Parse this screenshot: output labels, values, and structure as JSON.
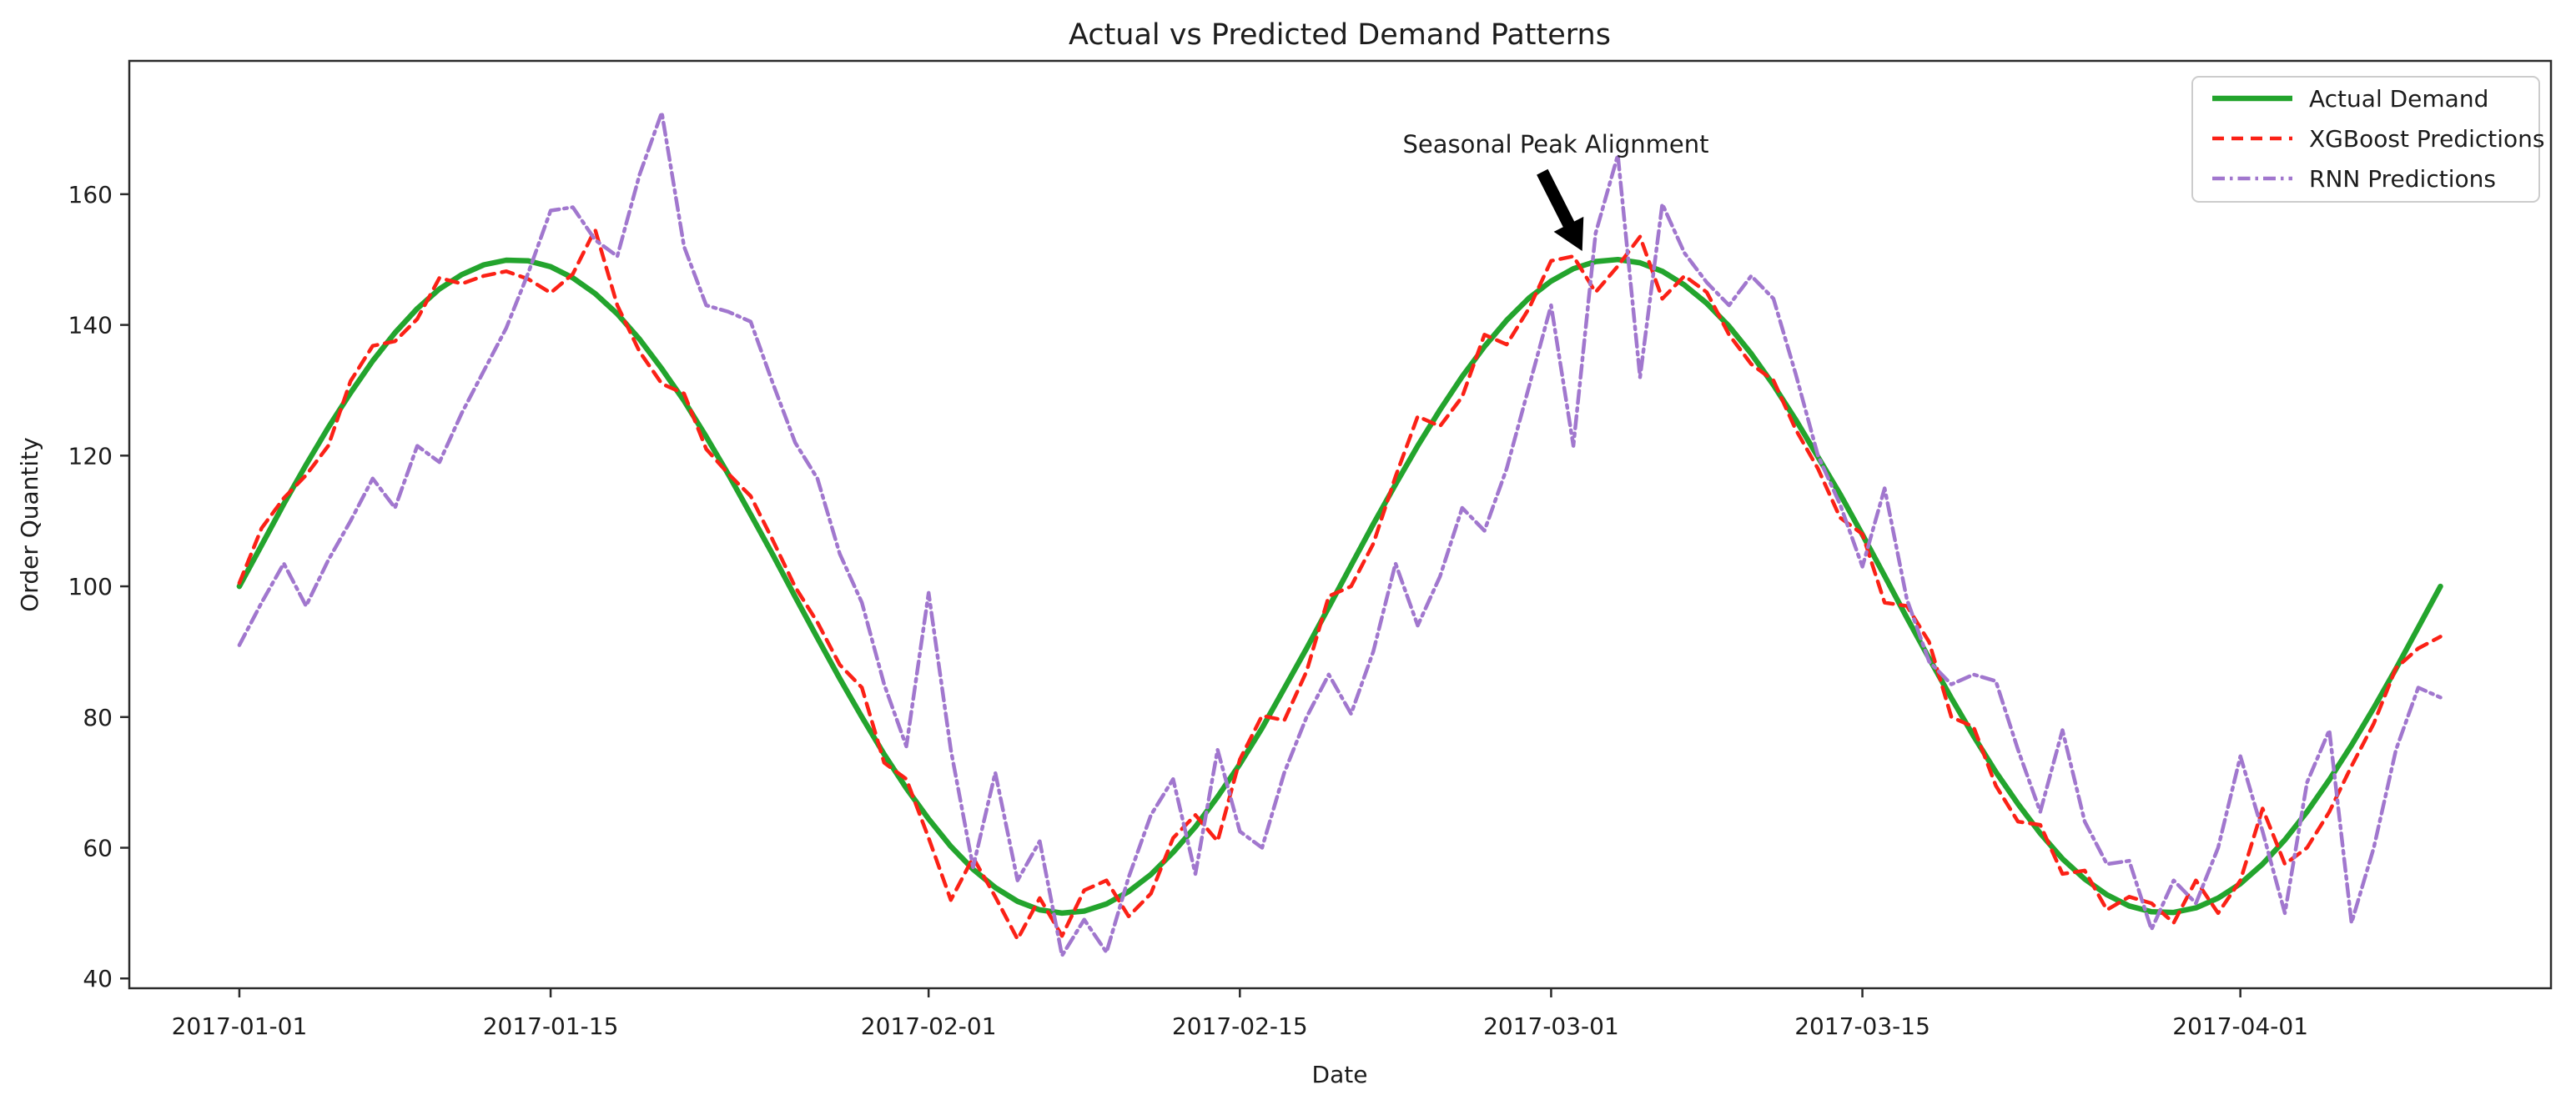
{
  "title": "Actual vs Predicted Demand Patterns",
  "axes": {
    "xlabel": "Date",
    "ylabel": "Order Quantity",
    "x_ticks": [
      {
        "label": "2017-01-01",
        "day": 0
      },
      {
        "label": "2017-01-15",
        "day": 14
      },
      {
        "label": "2017-02-01",
        "day": 31
      },
      {
        "label": "2017-02-15",
        "day": 45
      },
      {
        "label": "2017-03-01",
        "day": 59
      },
      {
        "label": "2017-03-15",
        "day": 73
      },
      {
        "label": "2017-04-01",
        "day": 90
      }
    ],
    "y_ticks": [
      40,
      60,
      80,
      100,
      120,
      140,
      160
    ]
  },
  "annotation": {
    "text": "Seasonal Peak Alignment",
    "arrow": {
      "from_day": 58.6,
      "from_value": 163.4,
      "to_day": 60.4,
      "to_value": 151.3
    }
  },
  "colors": {
    "actual": "#23a42d",
    "xgboost": "#fb2116",
    "rnn": "#a177ce",
    "spine": "#2b2b2b",
    "legend_border": "#cccccc",
    "arrow": "#000000",
    "background": "#ffffff"
  },
  "chart_data": {
    "type": "line",
    "x_start_date": "2017-01-01",
    "x_frequency": "daily",
    "x_days_range": [
      0,
      99
    ],
    "xlim_days": [
      -4.95,
      103.97
    ],
    "ylim": [
      38.5,
      180.4
    ],
    "grid": false,
    "legend_position": "upper right",
    "series": [
      {
        "name": "Actual Demand",
        "color": "#23a42d",
        "style": "solid",
        "values": [
          100,
          106.3,
          112.6,
          118.6,
          124.3,
          129.6,
          134.5,
          138.8,
          142.5,
          145.5,
          147.7,
          149.2,
          149.9,
          149.8,
          148.9,
          147.2,
          144.8,
          141.7,
          137.8,
          133.3,
          128.4,
          122.9,
          117.1,
          111,
          104.8,
          98.4,
          92.1,
          85.9,
          80,
          74.3,
          69.1,
          64.4,
          60.2,
          56.7,
          53.9,
          51.8,
          50.5,
          50,
          50.3,
          51.4,
          53.3,
          55.9,
          59.3,
          63.2,
          67.8,
          72.8,
          78.3,
          84.4,
          90.5,
          96.8,
          103.2,
          109.5,
          115.6,
          121.5,
          127,
          132.1,
          136.7,
          140.7,
          144.1,
          146.7,
          148.6,
          149.7,
          150,
          149.5,
          148.2,
          146.1,
          143.3,
          139.8,
          135.6,
          130.8,
          125.5,
          119.8,
          114.1,
          107.9,
          101.6,
          95.2,
          89,
          82.9,
          77.1,
          71.6,
          66.7,
          62.2,
          58.3,
          55.2,
          52.8,
          51.1,
          50.2,
          50.1,
          50.8,
          52.3,
          54.5,
          57.5,
          61.2,
          65.5,
          70.4,
          75.7,
          81.4,
          87.4,
          93.7,
          100
        ]
      },
      {
        "name": "XGBoost Predictions",
        "color": "#fb2116",
        "style": "dashed",
        "values": [
          100.5,
          108.9,
          113.5,
          117,
          121.5,
          131.4,
          136.8,
          137.5,
          140.9,
          147.2,
          146.3,
          147.5,
          148.2,
          147,
          144.9,
          147.8,
          154.6,
          143,
          135.9,
          131,
          129.5,
          121,
          117.2,
          113.8,
          107,
          99.9,
          94.5,
          88,
          84.5,
          73,
          70.5,
          61.5,
          52,
          58.5,
          52.5,
          46,
          52.3,
          46.5,
          53.5,
          55,
          49.5,
          53,
          61.5,
          65,
          61,
          73.5,
          80.2,
          79.5,
          87,
          98.5,
          100,
          106.5,
          116.8,
          126,
          124.5,
          129,
          138.5,
          137,
          142.5,
          149.8,
          150.5,
          145,
          149,
          153.5,
          144,
          147.5,
          145,
          138.5,
          134,
          131.5,
          124,
          118,
          110.5,
          108,
          97.5,
          97,
          91.5,
          80,
          78.5,
          69.5,
          64,
          63.5,
          56,
          56.5,
          50.5,
          52.5,
          51.5,
          48.5,
          55,
          50,
          55,
          66,
          57.5,
          60,
          65.5,
          72.5,
          79,
          87.5,
          90.5,
          92.3
        ]
      },
      {
        "name": "RNN Predictions",
        "color": "#a177ce",
        "style": "dashdot",
        "values": [
          91,
          97.5,
          103.5,
          97,
          104,
          110,
          116.5,
          112,
          121.5,
          119,
          126.5,
          133,
          139.5,
          148,
          157.5,
          158,
          153,
          150.5,
          163,
          172.5,
          152,
          143,
          142,
          140.5,
          131,
          122,
          116.5,
          105,
          97.5,
          85,
          75.5,
          99,
          75,
          57,
          71.5,
          55,
          61,
          43.5,
          49,
          44,
          55.5,
          65,
          70.5,
          56,
          75,
          62.5,
          60,
          71.5,
          80,
          86.5,
          80.5,
          90,
          103.5,
          94,
          101.5,
          112,
          108.5,
          118,
          130.5,
          143,
          121.5,
          154,
          166,
          132,
          158.5,
          151,
          146.5,
          143,
          147.5,
          144,
          132.5,
          120,
          112.5,
          103,
          115,
          98,
          88.5,
          85,
          86.5,
          85.5,
          75,
          65.5,
          78,
          64,
          57.5,
          58,
          47.5,
          55,
          51.5,
          60,
          74,
          62.5,
          50,
          70,
          78,
          48.5,
          60,
          75,
          84.5,
          83
        ]
      }
    ]
  }
}
